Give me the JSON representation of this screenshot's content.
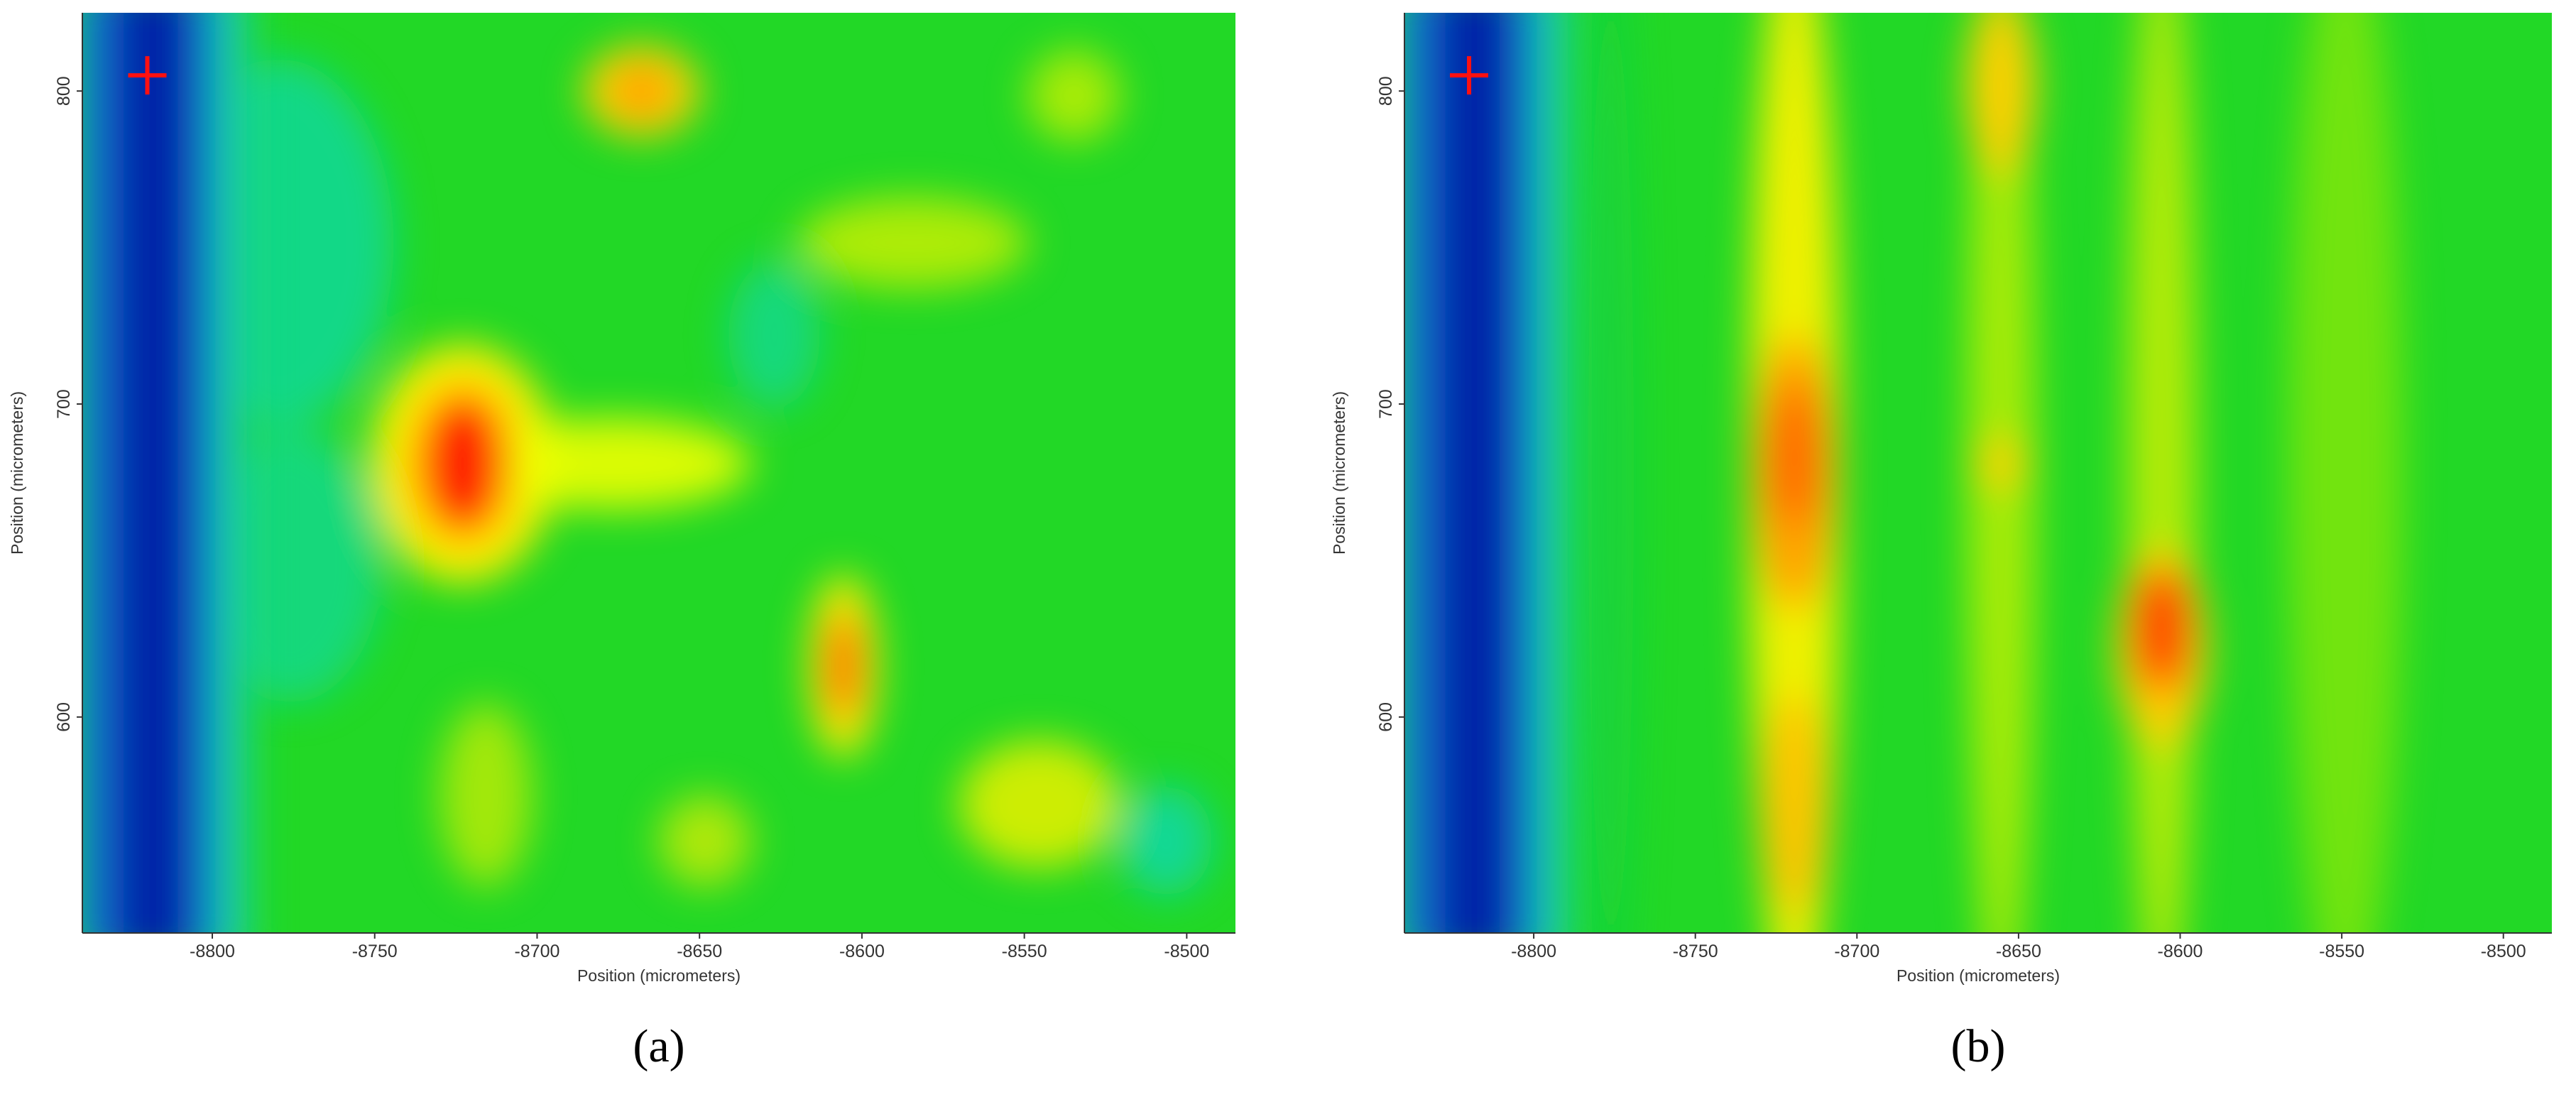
{
  "chart_data": [
    {
      "type": "heatmap",
      "caption": "(a)",
      "x_label": "Position (micrometers)",
      "y_label": "Position (micrometers)",
      "xlim": [
        -8840,
        -8485
      ],
      "xticks": [
        -8800,
        -8750,
        -8700,
        -8650,
        -8600,
        -8550,
        -8500
      ],
      "ylim": [
        531,
        825
      ],
      "yticks": [
        600,
        700,
        800
      ],
      "marker": {
        "x": -8820,
        "y": 805,
        "color": "#ff1010"
      }
    },
    {
      "type": "heatmap",
      "caption": "(b)",
      "x_label": "Position (micrometers)",
      "y_label": "Position (micrometers)",
      "xlim": [
        -8840,
        -8485
      ],
      "xticks": [
        -8800,
        -8750,
        -8700,
        -8650,
        -8600,
        -8550,
        -8500
      ],
      "ylim": [
        531,
        825
      ],
      "yticks": [
        600,
        700,
        800
      ],
      "marker": {
        "x": -8820,
        "y": 805,
        "color": "#ff1010"
      }
    }
  ]
}
